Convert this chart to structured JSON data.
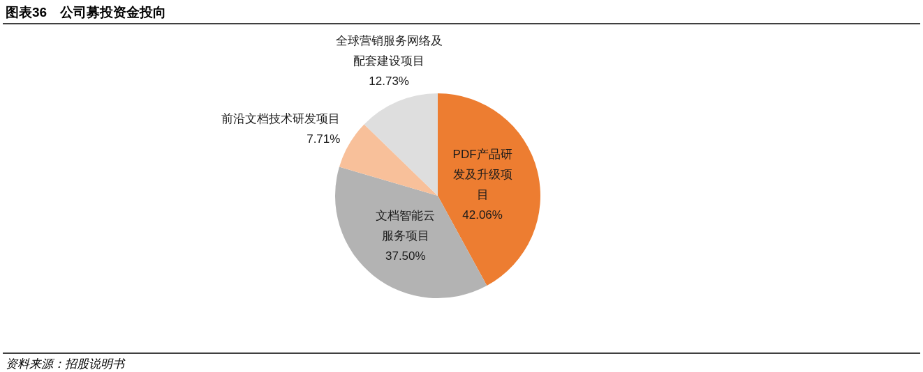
{
  "chart_data": {
    "type": "pie",
    "title": "图表36　公司募投资金投向",
    "categories": [
      "PDF产品研发及升级项目",
      "文档智能云服务项目",
      "前沿文档技术研发项目",
      "全球营销服务网络及配套建设项目"
    ],
    "values": [
      42.06,
      37.5,
      7.71,
      12.73
    ],
    "colors": [
      "#ed7d31",
      "#b3b3b3",
      "#f8c09a",
      "#dedede"
    ],
    "value_labels": [
      "42.06%",
      "37.50%",
      "7.71%",
      "12.73%"
    ],
    "annotations": [
      "资料来源：招股说明书"
    ]
  }
}
